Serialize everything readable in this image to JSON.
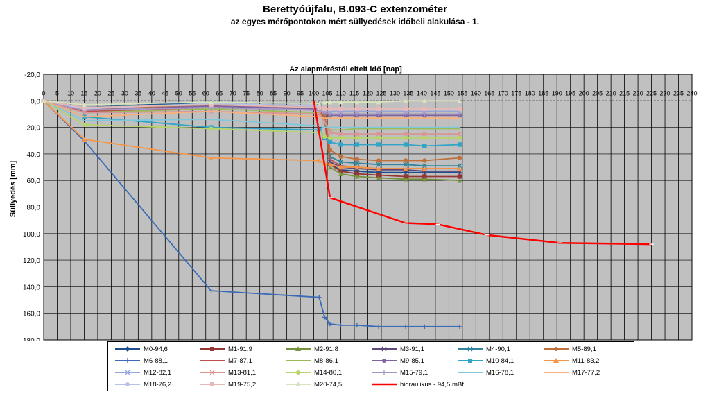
{
  "header": {
    "title": "Berettyóújfalu, B.093-C extenzométer",
    "subtitle": "az egyes mérőpontokon mért süllyedések időbeli alakulása - 1."
  },
  "chart_data": {
    "type": "line",
    "xlabel": "Az alapméréstől eltelt idő [nap]",
    "ylabel": "Süllyedés [mm]",
    "xlim": [
      0,
      240
    ],
    "ylim": [
      -20,
      180
    ],
    "y_inverted": true,
    "x_ticks": [
      0,
      5,
      10,
      15,
      20,
      25,
      30,
      35,
      40,
      45,
      50,
      55,
      60,
      65,
      70,
      75,
      80,
      85,
      90,
      95,
      100,
      105,
      110,
      115,
      120,
      125,
      130,
      135,
      140,
      145,
      150,
      155,
      160,
      165,
      170,
      175,
      180,
      185,
      190,
      195,
      200,
      205,
      210,
      215,
      220,
      225,
      230,
      235,
      240
    ],
    "y_ticks": [
      "-20,0",
      "0,0",
      "20,0",
      "40,0",
      "60,0",
      "80,0",
      "100,0",
      "120,0",
      "140,0",
      "160,0",
      "180,0"
    ],
    "y_tick_values": [
      -20,
      0,
      20,
      40,
      60,
      80,
      100,
      120,
      140,
      160,
      180
    ],
    "grid": true,
    "legend_position": "bottom",
    "series": [
      {
        "name": "M0-94,6",
        "color": "#1f4e8c",
        "marker": "diamond",
        "x": [
          0,
          15,
          62,
          102,
          104,
          106,
          110,
          116,
          124,
          134,
          141,
          154
        ],
        "y": [
          0,
          5,
          1,
          2,
          8,
          48,
          52,
          53,
          54,
          54,
          54,
          54
        ]
      },
      {
        "name": "M1-91,9",
        "color": "#943634",
        "marker": "square",
        "x": [
          0,
          15,
          62,
          102,
          104,
          106,
          110,
          116,
          124,
          134,
          141,
          154
        ],
        "y": [
          0,
          6,
          4,
          5,
          12,
          48,
          53,
          55,
          56,
          57,
          57,
          57
        ]
      },
      {
        "name": "M2-91,8",
        "color": "#76923c",
        "marker": "triangle",
        "x": [
          0,
          15,
          62,
          102,
          104,
          106,
          110,
          116,
          124,
          134,
          141,
          154
        ],
        "y": [
          0,
          6,
          4,
          6,
          14,
          50,
          55,
          57,
          58,
          59,
          59,
          60
        ]
      },
      {
        "name": "M3-91,1",
        "color": "#5f497a",
        "marker": "x",
        "x": [
          0,
          15,
          62,
          102,
          104,
          106,
          110,
          116,
          124,
          134,
          141,
          154
        ],
        "y": [
          0,
          6,
          3,
          5,
          12,
          46,
          50,
          51,
          52,
          52,
          53,
          53
        ]
      },
      {
        "name": "M4-90,1",
        "color": "#31849b",
        "marker": "star",
        "x": [
          0,
          15,
          62,
          102,
          104,
          106,
          110,
          116,
          124,
          134,
          141,
          154
        ],
        "y": [
          0,
          5,
          2,
          4,
          10,
          42,
          46,
          47,
          48,
          48,
          49,
          49
        ]
      },
      {
        "name": "M5-89,1",
        "color": "#c0703a",
        "marker": "circle",
        "x": [
          0,
          15,
          62,
          102,
          104,
          106,
          110,
          116,
          124,
          134,
          141,
          154
        ],
        "y": [
          0,
          6,
          3,
          5,
          10,
          37,
          42,
          44,
          45,
          45,
          45,
          43
        ]
      },
      {
        "name": "M6-88,1",
        "color": "#3b6bb5",
        "marker": "plus",
        "x": [
          0,
          15,
          62,
          102,
          104,
          106,
          110,
          116,
          124,
          134,
          141,
          154
        ],
        "y": [
          0,
          30,
          143,
          148,
          163,
          168,
          169,
          169,
          170,
          170,
          170,
          170
        ]
      },
      {
        "name": "M7-87,1",
        "color": "#c0504d",
        "marker": "none",
        "x": [
          0,
          15,
          62,
          102,
          104,
          106,
          110,
          116,
          124,
          134,
          141,
          154
        ],
        "y": [
          0,
          8,
          5,
          7,
          14,
          44,
          49,
          50,
          51,
          51,
          51,
          51
        ]
      },
      {
        "name": "M8-86,1",
        "color": "#9bbb59",
        "marker": "none",
        "x": [
          0,
          15,
          62,
          102,
          104,
          106,
          110,
          116,
          124,
          134,
          141,
          154
        ],
        "y": [
          0,
          9,
          6,
          9,
          16,
          22,
          22,
          21,
          21,
          21,
          21,
          21
        ]
      },
      {
        "name": "M9-85,1",
        "color": "#8064a2",
        "marker": "circle",
        "x": [
          0,
          15,
          62,
          102,
          104,
          106,
          110,
          116,
          124,
          134,
          141,
          154
        ],
        "y": [
          0,
          7,
          4,
          6,
          9,
          11,
          11,
          11,
          11,
          11,
          11,
          11
        ]
      },
      {
        "name": "M10-84,1",
        "color": "#31a5c8",
        "marker": "square",
        "x": [
          0,
          15,
          62,
          102,
          104,
          106,
          110,
          116,
          124,
          134,
          141,
          154
        ],
        "y": [
          0,
          12,
          20,
          22,
          28,
          31,
          33,
          33,
          33,
          33,
          34,
          33
        ]
      },
      {
        "name": "M11-83,2",
        "color": "#f79646",
        "marker": "triangle",
        "x": [
          0,
          15,
          62,
          102,
          104,
          106,
          110,
          116,
          124,
          134,
          141,
          154
        ],
        "y": [
          0,
          29,
          43,
          45,
          47,
          48,
          50,
          50,
          51,
          51,
          51,
          51
        ]
      },
      {
        "name": "M12-82,1",
        "color": "#95a4d8",
        "marker": "x",
        "x": [
          0,
          15,
          62,
          102,
          104,
          106,
          110,
          116,
          124,
          134,
          141,
          154
        ],
        "y": [
          0,
          7,
          5,
          7,
          8,
          8,
          8,
          8,
          8,
          8,
          8,
          8
        ]
      },
      {
        "name": "M13-81,1",
        "color": "#d99594",
        "marker": "star",
        "x": [
          0,
          15,
          62,
          102,
          104,
          106,
          110,
          116,
          124,
          134,
          141,
          154
        ],
        "y": [
          0,
          9,
          8,
          10,
          16,
          24,
          25,
          25,
          25,
          25,
          25,
          25
        ]
      },
      {
        "name": "M14-80,1",
        "color": "#b5d56a",
        "marker": "circle",
        "x": [
          0,
          15,
          62,
          102,
          104,
          106,
          110,
          116,
          124,
          134,
          141,
          154
        ],
        "y": [
          0,
          18,
          21,
          24,
          27,
          28,
          28,
          28,
          28,
          28,
          28,
          28
        ]
      },
      {
        "name": "M15-79,1",
        "color": "#a696c8",
        "marker": "plus",
        "x": [
          0,
          15,
          62,
          102,
          104,
          106,
          110,
          116,
          124,
          134,
          141,
          154
        ],
        "y": [
          0,
          7,
          5,
          7,
          9,
          10,
          10,
          10,
          10,
          10,
          10,
          10
        ]
      },
      {
        "name": "M16-78,1",
        "color": "#7ec8dc",
        "marker": "none",
        "x": [
          0,
          15,
          62,
          102,
          104,
          106,
          110,
          116,
          124,
          134,
          141,
          154
        ],
        "y": [
          0,
          15,
          14,
          19,
          20,
          20,
          20,
          20,
          20,
          20,
          20,
          20
        ]
      },
      {
        "name": "M17-77,2",
        "color": "#f9b07a",
        "marker": "none",
        "x": [
          0,
          15,
          62,
          102,
          104,
          106,
          110,
          116,
          124,
          134,
          141,
          154
        ],
        "y": [
          0,
          12,
          8,
          12,
          13,
          13,
          13,
          13,
          13,
          13,
          13,
          13
        ]
      },
      {
        "name": "M18-76,2",
        "color": "#b8c3e3",
        "marker": "circle",
        "x": [
          0,
          15,
          62,
          102,
          104,
          106,
          110,
          116,
          124,
          134,
          141,
          154
        ],
        "y": [
          0,
          6,
          2,
          4,
          6,
          6,
          6,
          6,
          6,
          6,
          6,
          6
        ]
      },
      {
        "name": "M19-75,2",
        "color": "#e6b8b7",
        "marker": "square",
        "x": [
          0,
          15,
          62,
          102,
          104,
          106,
          110,
          116,
          124,
          134,
          141,
          154
        ],
        "y": [
          0,
          5,
          3,
          5,
          6,
          6,
          6,
          6,
          6,
          6,
          6,
          6
        ]
      },
      {
        "name": "M20-74,5",
        "color": "#d7e4bd",
        "marker": "triangle",
        "x": [
          0,
          15,
          62,
          102,
          104,
          106,
          110,
          116,
          124,
          134,
          141,
          154
        ],
        "y": [
          0,
          3,
          1,
          2,
          1,
          1,
          1,
          1,
          1,
          0,
          0,
          0
        ]
      },
      {
        "name": "hidraulikus - 94,5 mBf",
        "color": "#ff0000",
        "marker": "dash",
        "x": [
          100,
          106,
          134,
          146,
          164,
          191,
          225
        ],
        "y": [
          0,
          73,
          92,
          93,
          101,
          107,
          108
        ]
      }
    ]
  }
}
